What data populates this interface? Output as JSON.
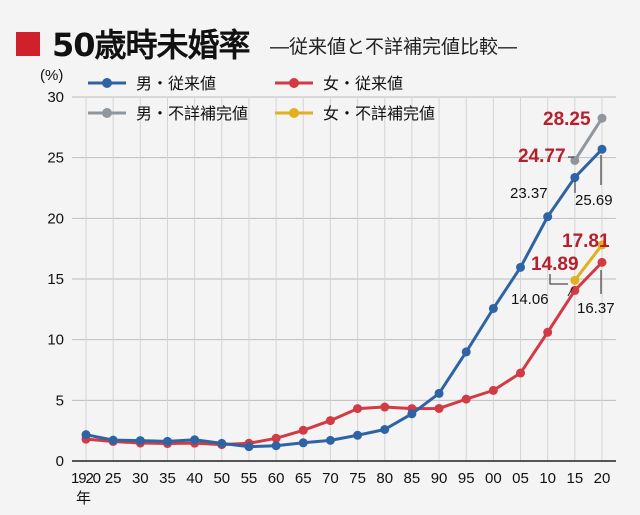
{
  "header": {
    "title": "50歳時未婚率",
    "subtitle": "―従来値と不詳補完値比較―"
  },
  "colors": {
    "accent": "#d0202b",
    "male_conv": "#2f64a4",
    "female_conv": "#d23a44",
    "male_imputed": "#8f969c",
    "female_imputed": "#e0b01e",
    "label_red": "#b5202b"
  },
  "chart_data": {
    "type": "line",
    "ylabel": "(%)",
    "ylim": [
      0,
      30
    ],
    "yticks": [
      0,
      5,
      10,
      15,
      20,
      25,
      30
    ],
    "xunit": "年",
    "grid": true,
    "x": [
      1920,
      1925,
      1930,
      1935,
      1940,
      1950,
      1955,
      1960,
      1965,
      1970,
      1975,
      1980,
      1985,
      1990,
      1995,
      2000,
      2005,
      2010,
      2015,
      2020
    ],
    "xtick_labels": [
      "1920",
      "25",
      "30",
      "35",
      "40",
      "50",
      "55",
      "60",
      "65",
      "70",
      "75",
      "80",
      "85",
      "90",
      "95",
      "00",
      "05",
      "10",
      "15",
      "20"
    ],
    "series": [
      {
        "name": "男・従来値",
        "key": "male_conv",
        "x": [
          1920,
          1925,
          1930,
          1935,
          1940,
          1950,
          1955,
          1960,
          1965,
          1970,
          1975,
          1980,
          1985,
          1990,
          1995,
          2000,
          2005,
          2010,
          2015,
          2020
        ],
        "values": [
          2.17,
          1.72,
          1.68,
          1.62,
          1.75,
          1.45,
          1.18,
          1.26,
          1.5,
          1.7,
          2.12,
          2.6,
          3.89,
          5.57,
          8.99,
          12.57,
          15.96,
          20.14,
          23.37,
          25.69
        ]
      },
      {
        "name": "女・従来値",
        "key": "female_conv",
        "x": [
          1920,
          1925,
          1930,
          1935,
          1940,
          1950,
          1955,
          1960,
          1965,
          1970,
          1975,
          1980,
          1985,
          1990,
          1995,
          2000,
          2005,
          2010,
          2015,
          2020
        ],
        "values": [
          1.8,
          1.61,
          1.48,
          1.44,
          1.47,
          1.35,
          1.46,
          1.87,
          2.53,
          3.33,
          4.32,
          4.45,
          4.32,
          4.33,
          5.1,
          5.82,
          7.25,
          10.61,
          14.06,
          16.37
        ]
      },
      {
        "name": "男・不詳補完値",
        "key": "male_imputed",
        "x": [
          2015,
          2020
        ],
        "values": [
          24.77,
          28.25
        ]
      },
      {
        "name": "女・不詳補完値",
        "key": "female_imputed",
        "x": [
          2015,
          2020
        ],
        "values": [
          14.89,
          17.81
        ]
      }
    ],
    "annotations": [
      {
        "text": "28.25",
        "x": 2020,
        "y": 28.25,
        "style": "red"
      },
      {
        "text": "24.77",
        "x": 2015,
        "y": 24.77,
        "style": "red"
      },
      {
        "text": "23.37",
        "x": 2015,
        "y": 23.37,
        "style": "black"
      },
      {
        "text": "25.69",
        "x": 2020,
        "y": 25.69,
        "style": "black"
      },
      {
        "text": "17.81",
        "x": 2020,
        "y": 17.81,
        "style": "red"
      },
      {
        "text": "14.89",
        "x": 2015,
        "y": 14.89,
        "style": "red"
      },
      {
        "text": "14.06",
        "x": 2015,
        "y": 14.06,
        "style": "black"
      },
      {
        "text": "16.37",
        "x": 2020,
        "y": 16.37,
        "style": "black"
      }
    ]
  }
}
